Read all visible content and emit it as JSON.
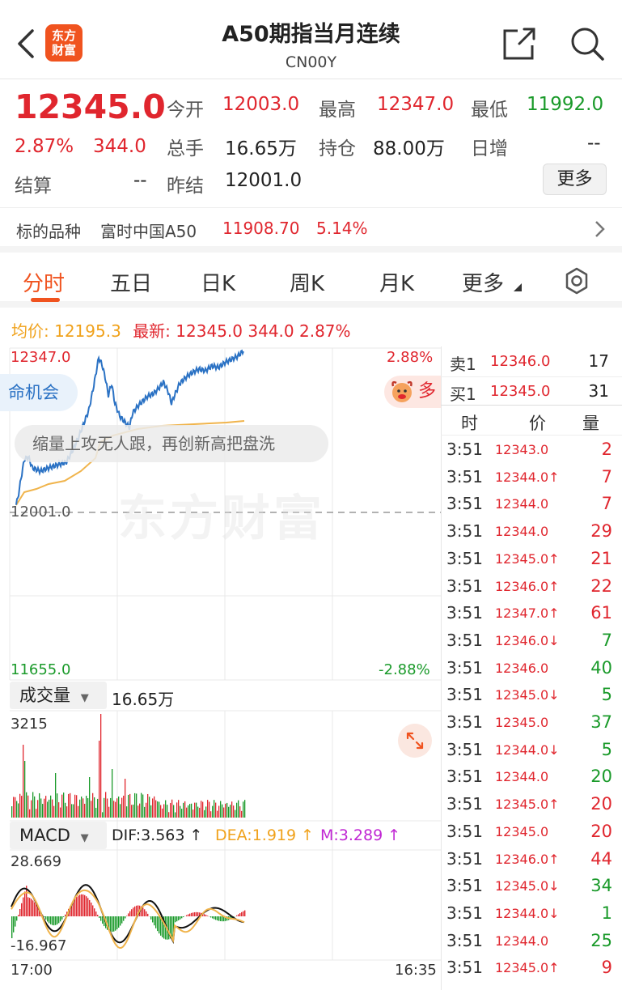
{
  "header": {
    "logo_top": "东方",
    "logo_bottom": "财富",
    "title": "A50期指当月连续",
    "subtitle": "CN00Y"
  },
  "quote": {
    "price": "12345.0",
    "change_pct": "2.87%",
    "change_amt": "344.0",
    "settle_label": "结算",
    "settle_value": "--",
    "open_label": "今开",
    "open_value": "12003.0",
    "high_label": "最高",
    "high_value": "12347.0",
    "low_label": "最低",
    "low_value": "11992.0",
    "volume_label": "总手",
    "volume_value": "16.65万",
    "position_label": "持仓",
    "position_value": "88.00万",
    "daily_inc_label": "日增",
    "daily_inc_value": "--",
    "prev_settle_label": "昨结",
    "prev_settle_value": "12001.0",
    "more_label": "更多"
  },
  "underlying": {
    "label": "标的品种",
    "name": "富时中国A50",
    "price": "11908.70",
    "pct": "5.14%"
  },
  "tabs": [
    "分时",
    "五日",
    "日K",
    "周K",
    "月K",
    "更多"
  ],
  "info_line": {
    "avg_label": "均价:",
    "avg_value": "12195.3",
    "latest_label": "最新:",
    "latest_value": "12345.0",
    "latest_chg": "344.0",
    "latest_pct": "2.87%"
  },
  "chart_labels": {
    "y_top": "12347.0",
    "y_mid": "12001.0",
    "y_bottom": "11655.0",
    "pct_top": "2.88%",
    "pct_bottom": "-2.88%",
    "time_start": "17:00",
    "time_end": "16:35"
  },
  "overlay": {
    "bubble1": "命机会",
    "bubble2": "缩量上攻无人跟，再创新高把盘洗",
    "bull_text": "多",
    "watermark": "东方财富"
  },
  "volume_panel": {
    "label": "成交量",
    "value": "16.65万",
    "max": "3215"
  },
  "macd_panel": {
    "label": "MACD",
    "dif": "DIF:3.563 ↑",
    "dea": "DEA:1.919 ↑",
    "m": "M:3.289 ↑",
    "max": "28.669",
    "min": "-16.967"
  },
  "orderbook": [
    {
      "label": "卖1",
      "price": "12346.0",
      "volume": "17"
    },
    {
      "label": "买1",
      "price": "12345.0",
      "volume": "31"
    }
  ],
  "trades_header": [
    "时",
    "价",
    "量"
  ],
  "trades": [
    {
      "time": "3:51",
      "price": "12343.0",
      "vol": "2",
      "dir": "up"
    },
    {
      "time": "3:51",
      "price": "12344.0↑",
      "vol": "7",
      "dir": "up"
    },
    {
      "time": "3:51",
      "price": "12344.0",
      "vol": "7",
      "dir": "up"
    },
    {
      "time": "3:51",
      "price": "12344.0",
      "vol": "29",
      "dir": "up"
    },
    {
      "time": "3:51",
      "price": "12345.0↑",
      "vol": "21",
      "dir": "up"
    },
    {
      "time": "3:51",
      "price": "12346.0↑",
      "vol": "22",
      "dir": "up"
    },
    {
      "time": "3:51",
      "price": "12347.0↑",
      "vol": "61",
      "dir": "up"
    },
    {
      "time": "3:51",
      "price": "12346.0↓",
      "vol": "7",
      "dir": "down"
    },
    {
      "time": "3:51",
      "price": "12346.0",
      "vol": "40",
      "dir": "down"
    },
    {
      "time": "3:51",
      "price": "12345.0↓",
      "vol": "5",
      "dir": "down"
    },
    {
      "time": "3:51",
      "price": "12345.0",
      "vol": "37",
      "dir": "down"
    },
    {
      "time": "3:51",
      "price": "12344.0↓",
      "vol": "5",
      "dir": "down"
    },
    {
      "time": "3:51",
      "price": "12344.0",
      "vol": "20",
      "dir": "down"
    },
    {
      "time": "3:51",
      "price": "12345.0↑",
      "vol": "20",
      "dir": "up"
    },
    {
      "time": "3:51",
      "price": "12345.0",
      "vol": "20",
      "dir": "up"
    },
    {
      "time": "3:51",
      "price": "12346.0↑",
      "vol": "44",
      "dir": "up"
    },
    {
      "time": "3:51",
      "price": "12345.0↓",
      "vol": "34",
      "dir": "down"
    },
    {
      "time": "3:51",
      "price": "12344.0↓",
      "vol": "1",
      "dir": "down"
    },
    {
      "time": "3:51",
      "price": "12344.0",
      "vol": "25",
      "dir": "down"
    },
    {
      "time": "3:51",
      "price": "12345.0↑",
      "vol": "9",
      "dir": "up"
    }
  ],
  "colors": {
    "up": "#e0262e",
    "down": "#1a9a2a",
    "accent": "#f0531f",
    "price_line": "#2b72c4",
    "avg_line": "#f0b44c"
  }
}
